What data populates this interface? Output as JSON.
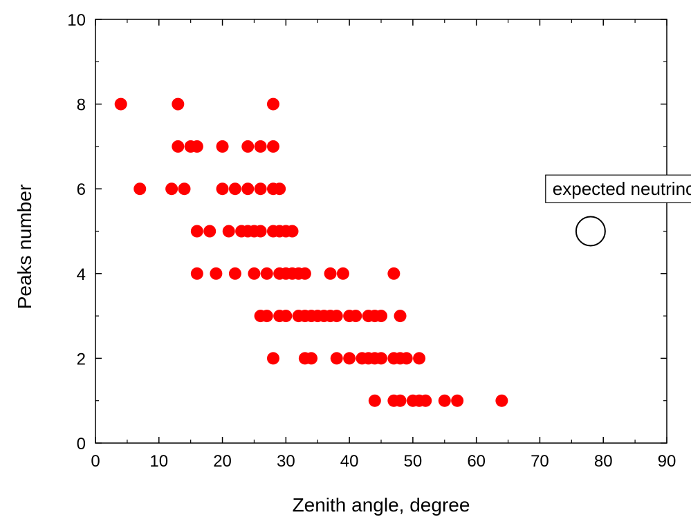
{
  "chart_data": {
    "type": "scatter",
    "title": "",
    "xlabel": "Zenith angle,   degree",
    "ylabel": "Peaks number",
    "xlim": [
      0,
      90
    ],
    "ylim": [
      0,
      10
    ],
    "xticks": [
      0,
      10,
      20,
      30,
      40,
      50,
      60,
      70,
      80,
      90
    ],
    "yticks": [
      0,
      2,
      4,
      6,
      8,
      10
    ],
    "grid": false,
    "legend_placement": "right",
    "series": [
      {
        "color": "#ff0000",
        "marker": "filled-circle",
        "points": [
          [
            4,
            8
          ],
          [
            13,
            8
          ],
          [
            28,
            8
          ],
          [
            13,
            7
          ],
          [
            15,
            7
          ],
          [
            16,
            7
          ],
          [
            20,
            7
          ],
          [
            24,
            7
          ],
          [
            26,
            7
          ],
          [
            28,
            7
          ],
          [
            7,
            6
          ],
          [
            12,
            6
          ],
          [
            14,
            6
          ],
          [
            20,
            6
          ],
          [
            22,
            6
          ],
          [
            24,
            6
          ],
          [
            26,
            6
          ],
          [
            28,
            6
          ],
          [
            29,
            6
          ],
          [
            16,
            5
          ],
          [
            18,
            5
          ],
          [
            21,
            5
          ],
          [
            23,
            5
          ],
          [
            24,
            5
          ],
          [
            25,
            5
          ],
          [
            26,
            5
          ],
          [
            28,
            5
          ],
          [
            29,
            5
          ],
          [
            30,
            5
          ],
          [
            31,
            5
          ],
          [
            16,
            4
          ],
          [
            19,
            4
          ],
          [
            22,
            4
          ],
          [
            25,
            4
          ],
          [
            27,
            4
          ],
          [
            29,
            4
          ],
          [
            30,
            4
          ],
          [
            31,
            4
          ],
          [
            32,
            4
          ],
          [
            33,
            4
          ],
          [
            37,
            4
          ],
          [
            39,
            4
          ],
          [
            47,
            4
          ],
          [
            26,
            3
          ],
          [
            27,
            3
          ],
          [
            29,
            3
          ],
          [
            30,
            3
          ],
          [
            32,
            3
          ],
          [
            33,
            3
          ],
          [
            34,
            3
          ],
          [
            35,
            3
          ],
          [
            36,
            3
          ],
          [
            37,
            3
          ],
          [
            38,
            3
          ],
          [
            40,
            3
          ],
          [
            41,
            3
          ],
          [
            43,
            3
          ],
          [
            44,
            3
          ],
          [
            45,
            3
          ],
          [
            48,
            3
          ],
          [
            28,
            2
          ],
          [
            33,
            2
          ],
          [
            34,
            2
          ],
          [
            38,
            2
          ],
          [
            40,
            2
          ],
          [
            42,
            2
          ],
          [
            43,
            2
          ],
          [
            44,
            2
          ],
          [
            45,
            2
          ],
          [
            47,
            2
          ],
          [
            48,
            2
          ],
          [
            49,
            2
          ],
          [
            51,
            2
          ],
          [
            44,
            1
          ],
          [
            47,
            1
          ],
          [
            48,
            1
          ],
          [
            50,
            1
          ],
          [
            51,
            1
          ],
          [
            52,
            1
          ],
          [
            55,
            1
          ],
          [
            57,
            1
          ],
          [
            64,
            1
          ]
        ]
      },
      {
        "color": "#000000",
        "marker": "open-circle",
        "points": [
          [
            78,
            5
          ]
        ]
      }
    ],
    "annotations": [
      {
        "text": "expected neutrino",
        "x": 72,
        "y": 6
      }
    ]
  }
}
